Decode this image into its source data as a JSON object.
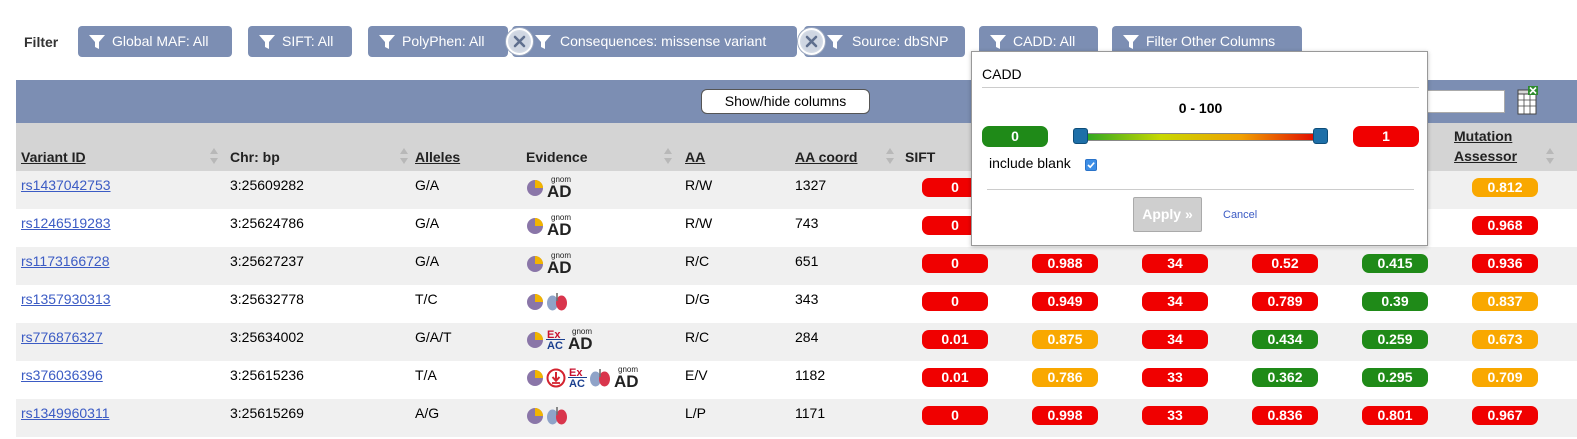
{
  "colors": {
    "pill": "#7c8eb3",
    "header_bar": "#7c8eb3",
    "red": "#f00000",
    "orange": "#f9a800",
    "green": "#1f8a18"
  },
  "filter_bar": {
    "label": "Filter",
    "pills": [
      {
        "label": "Global MAF: All",
        "removable": false
      },
      {
        "label": "SIFT: All",
        "removable": false
      },
      {
        "label": "PolyPhen: All",
        "removable": false
      },
      {
        "label": "Consequences: missense variant",
        "removable": true
      },
      {
        "label": "Source: dbSNP",
        "removable": true
      },
      {
        "label": "CADD: All",
        "removable": false
      },
      {
        "label": "Filter Other Columns",
        "removable": false
      }
    ]
  },
  "toolbar": {
    "show_hide_label": "Show/hide columns"
  },
  "columns": {
    "variant_id": "Variant ID",
    "chr_bp": "Chr: bp",
    "alleles": "Alleles",
    "evidence": "Evidence",
    "aa": "AA",
    "aa_coord": "AA coord",
    "sift": "SIFT",
    "mutation_assessor_1": "Mutation",
    "mutation_assessor_2": "Assessor"
  },
  "rows": [
    {
      "id": "rs1437042753",
      "chr": "3:25609282",
      "alleles": "G/A",
      "aa": "R/W",
      "coord": "1327",
      "evidence": [
        "pie-icon",
        "gnomad-icon"
      ],
      "scores": [
        {
          "v": "0",
          "c": "red"
        },
        null,
        null,
        null,
        null,
        {
          "v": "0.812",
          "c": "orange"
        }
      ]
    },
    {
      "id": "rs1246519283",
      "chr": "3:25624786",
      "alleles": "G/A",
      "aa": "R/W",
      "coord": "743",
      "evidence": [
        "pie-icon",
        "gnomad-icon"
      ],
      "scores": [
        {
          "v": "0",
          "c": "red"
        },
        null,
        null,
        null,
        null,
        {
          "v": "0.968",
          "c": "red"
        }
      ]
    },
    {
      "id": "rs1173166728",
      "chr": "3:25627237",
      "alleles": "G/A",
      "aa": "R/C",
      "coord": "651",
      "evidence": [
        "pie-icon",
        "gnomad-icon"
      ],
      "scores": [
        {
          "v": "0",
          "c": "red"
        },
        {
          "v": "0.988",
          "c": "red"
        },
        {
          "v": "34",
          "c": "red"
        },
        {
          "v": "0.52",
          "c": "red"
        },
        {
          "v": "0.415",
          "c": "green"
        },
        {
          "v": "0.936",
          "c": "red"
        }
      ]
    },
    {
      "id": "rs1357930313",
      "chr": "3:25632778",
      "alleles": "T/C",
      "aa": "D/G",
      "coord": "343",
      "evidence": [
        "pie-icon",
        "lungs-icon"
      ],
      "scores": [
        {
          "v": "0",
          "c": "red"
        },
        {
          "v": "0.949",
          "c": "red"
        },
        {
          "v": "34",
          "c": "red"
        },
        {
          "v": "0.789",
          "c": "red"
        },
        {
          "v": "0.39",
          "c": "green"
        },
        {
          "v": "0.837",
          "c": "orange"
        }
      ]
    },
    {
      "id": "rs776876327",
      "chr": "3:25634002",
      "alleles": "G/A/T",
      "aa": "R/C",
      "coord": "284",
      "evidence": [
        "pie-icon",
        "exac-icon",
        "gnomad-icon"
      ],
      "scores": [
        {
          "v": "0.01",
          "c": "red"
        },
        {
          "v": "0.875",
          "c": "orange"
        },
        {
          "v": "34",
          "c": "red"
        },
        {
          "v": "0.434",
          "c": "green"
        },
        {
          "v": "0.259",
          "c": "green"
        },
        {
          "v": "0.673",
          "c": "orange"
        }
      ]
    },
    {
      "id": "rs376036396",
      "chr": "3:25615236",
      "alleles": "T/A",
      "aa": "E/V",
      "coord": "1182",
      "evidence": [
        "pie-icon",
        "cited-icon",
        "exac-icon",
        "lungs-icon",
        "gnomad-icon"
      ],
      "scores": [
        {
          "v": "0.01",
          "c": "red"
        },
        {
          "v": "0.786",
          "c": "orange"
        },
        {
          "v": "33",
          "c": "red"
        },
        {
          "v": "0.362",
          "c": "green"
        },
        {
          "v": "0.295",
          "c": "green"
        },
        {
          "v": "0.709",
          "c": "orange"
        }
      ]
    },
    {
      "id": "rs1349960311",
      "chr": "3:25615269",
      "alleles": "A/G",
      "aa": "L/P",
      "coord": "1171",
      "evidence": [
        "pie-icon",
        "lungs-icon"
      ],
      "scores": [
        {
          "v": "0",
          "c": "red"
        },
        {
          "v": "0.998",
          "c": "red"
        },
        {
          "v": "33",
          "c": "red"
        },
        {
          "v": "0.836",
          "c": "red"
        },
        {
          "v": "0.801",
          "c": "red"
        },
        {
          "v": "0.967",
          "c": "red"
        }
      ]
    }
  ],
  "cadd_popup": {
    "title": "CADD",
    "range_text": "0 - 100",
    "min_value": "0",
    "max_value": "1",
    "include_blank_label": "include blank",
    "include_blank_checked": true,
    "apply_label": "Apply »",
    "cancel_label": "Cancel"
  },
  "evidence_labels": {
    "gnom": "gnom",
    "ad": "AD",
    "ex": "Ex",
    "ac": "AC"
  }
}
